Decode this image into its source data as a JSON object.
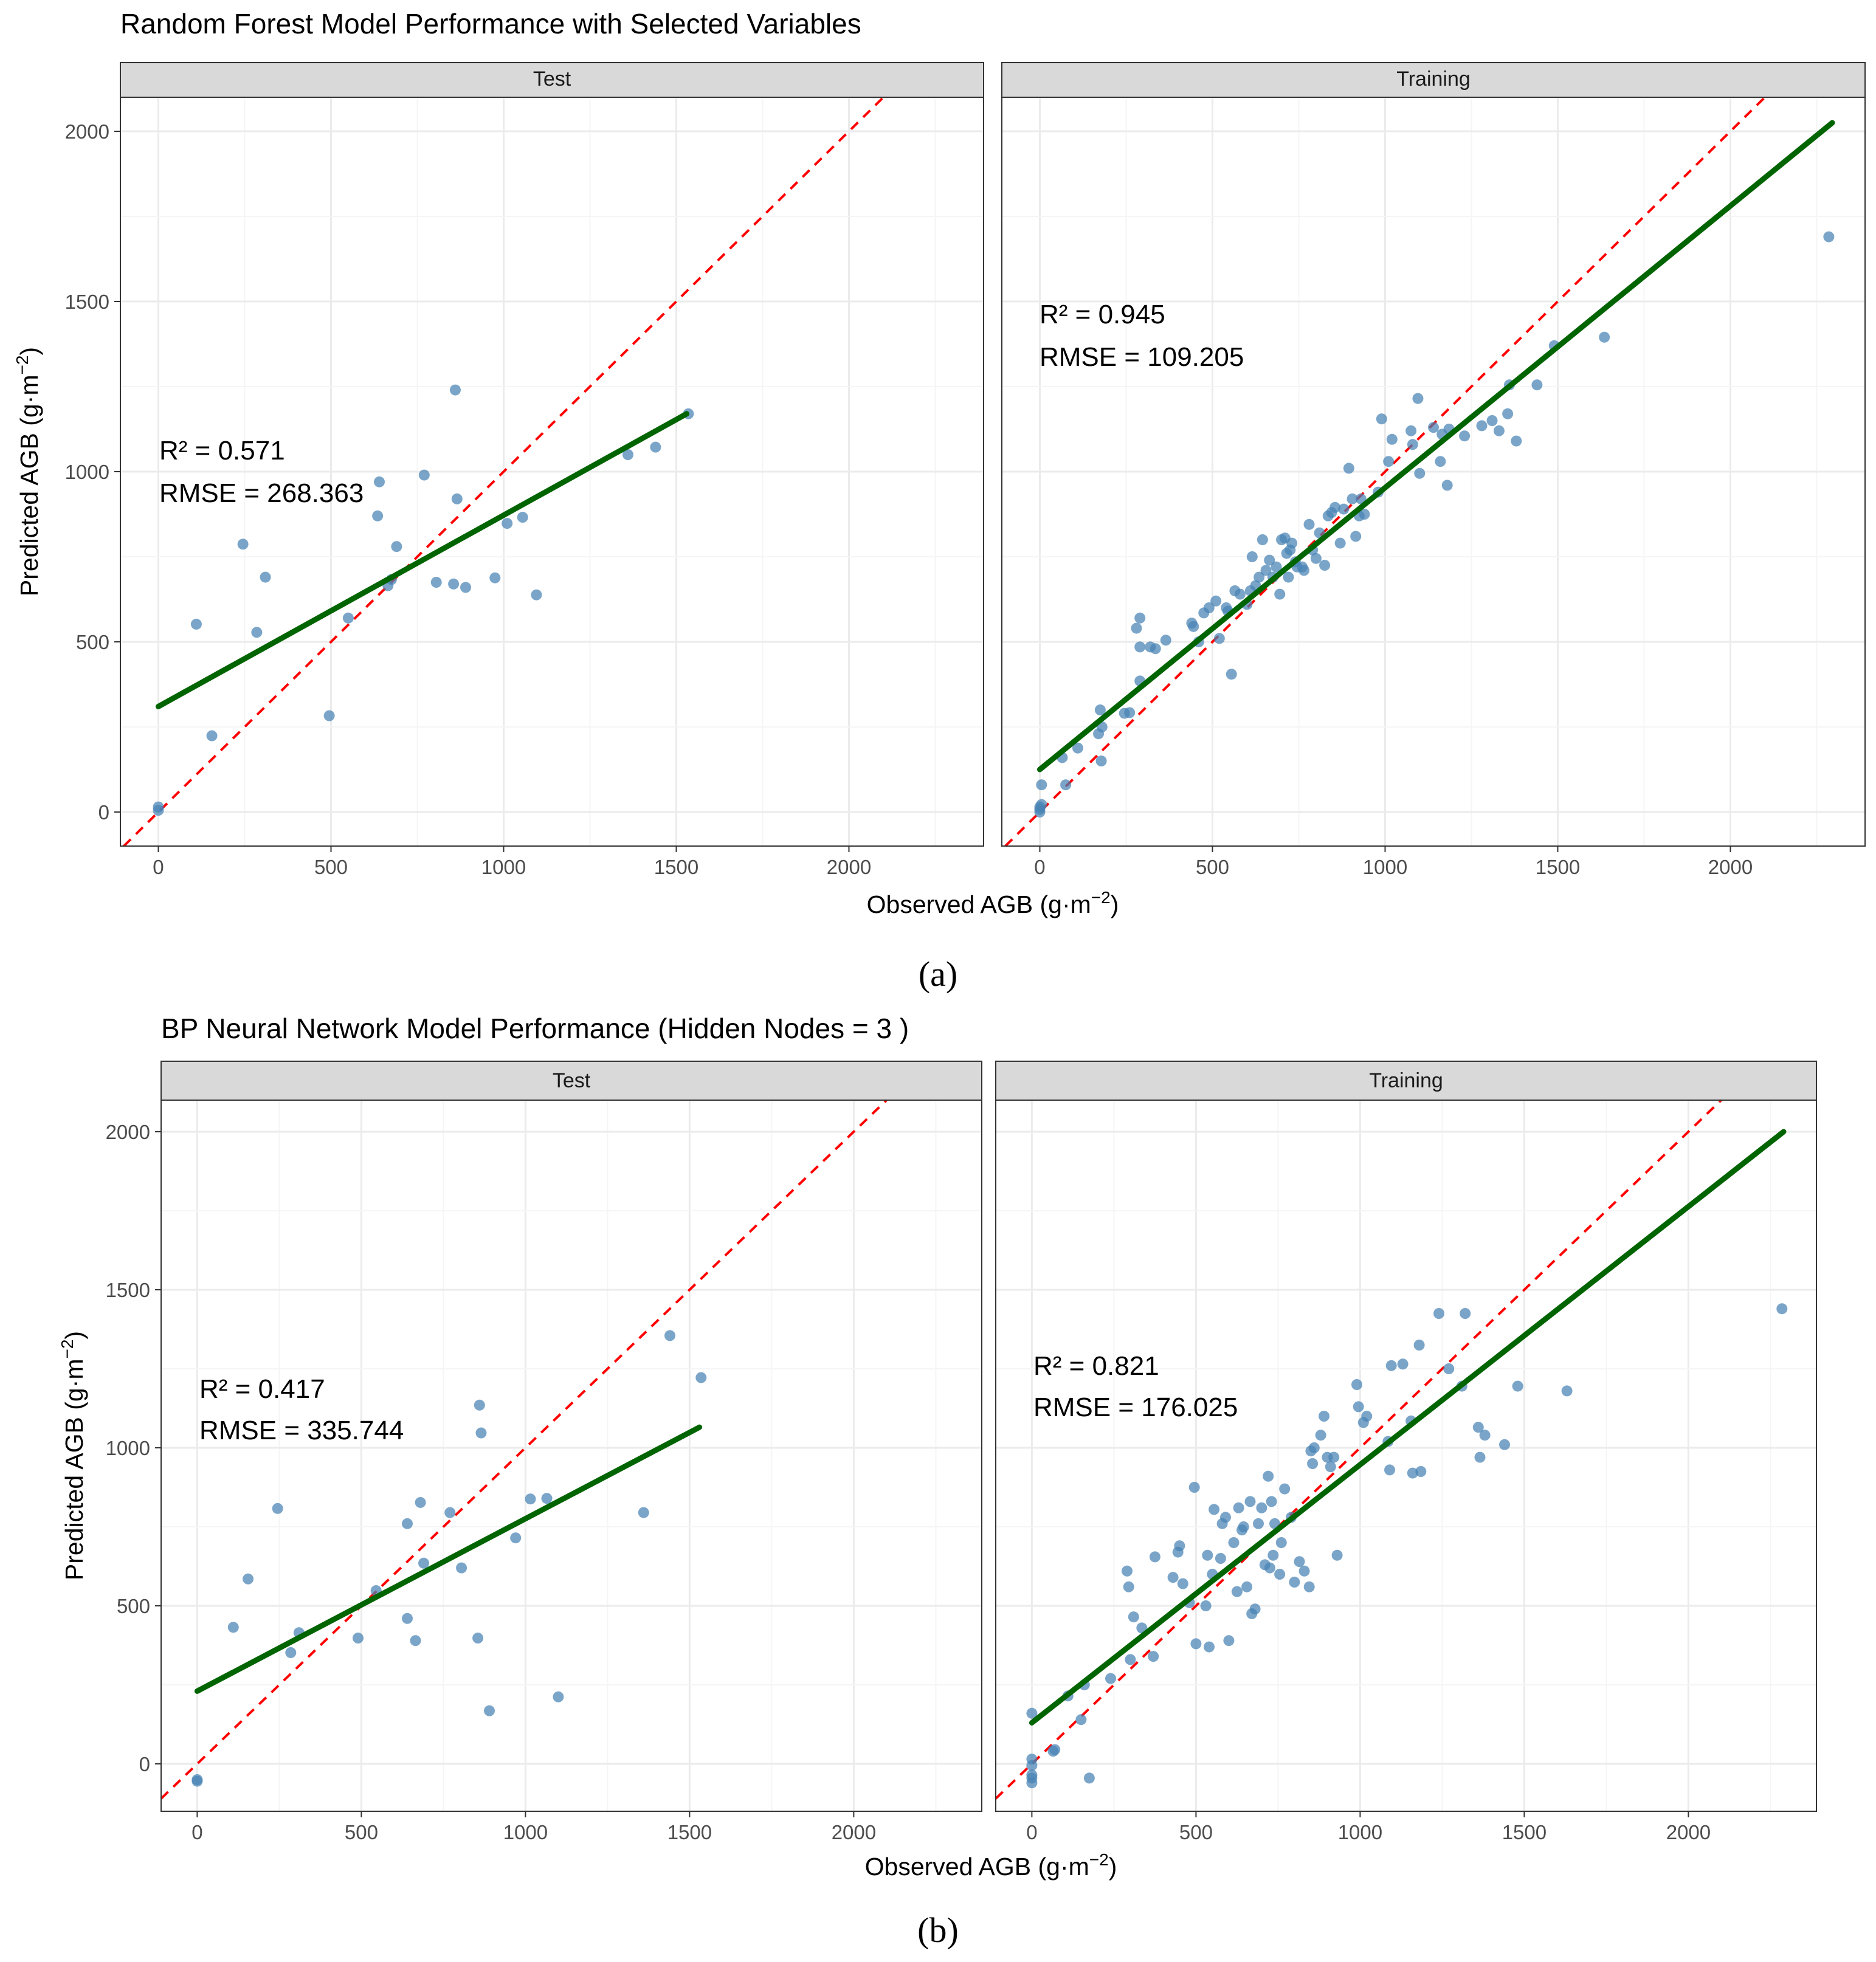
{
  "chart_data": [
    {
      "type": "scatter",
      "figure_title": "Random Forest Model Performance with Selected Variables",
      "sublabel": "(a)",
      "xlabel": "Observed AGB (g·m",
      "xlabel_sup": "−2",
      "xlabel_close": ")",
      "ylabel": "Predicted AGB (g·m",
      "ylabel_sup": "−2",
      "ylabel_close": ")",
      "xlim": [
        -110,
        2390
      ],
      "ylim": [
        -100,
        2100
      ],
      "xticks": [
        0,
        500,
        1000,
        1500,
        2000
      ],
      "yticks": [
        0,
        500,
        1000,
        1500,
        2000
      ],
      "panels": [
        {
          "strip": "Test",
          "r2_label": "R² = 0.571",
          "rmse_label": "RMSE = 268.363",
          "fit_line": {
            "x1": 0,
            "y1": 310,
            "x2": 1530,
            "y2": 1170
          },
          "points": [
            [
              0,
              5
            ],
            [
              0,
              15
            ],
            [
              110,
              552
            ],
            [
              155,
              224
            ],
            [
              245,
              787
            ],
            [
              285,
              528
            ],
            [
              310,
              690
            ],
            [
              495,
              283
            ],
            [
              550,
              570
            ],
            [
              635,
              870
            ],
            [
              640,
              970
            ],
            [
              665,
              665
            ],
            [
              675,
              683
            ],
            [
              690,
              780
            ],
            [
              770,
              990
            ],
            [
              805,
              675
            ],
            [
              855,
              670
            ],
            [
              860,
              1240
            ],
            [
              865,
              920
            ],
            [
              890,
              660
            ],
            [
              975,
              688
            ],
            [
              1010,
              848
            ],
            [
              1055,
              866
            ],
            [
              1095,
              638
            ],
            [
              1360,
              1050
            ],
            [
              1440,
              1072
            ],
            [
              1535,
              1170
            ]
          ]
        },
        {
          "strip": "Training",
          "r2_label": "R² = 0.945",
          "rmse_label": "RMSE = 109.205",
          "fit_line": {
            "x1": 0,
            "y1": 125,
            "x2": 2295,
            "y2": 2025
          },
          "points": [
            [
              0,
              0
            ],
            [
              0,
              8
            ],
            [
              0,
              15
            ],
            [
              5,
              22
            ],
            [
              5,
              80
            ],
            [
              65,
              160
            ],
            [
              75,
              80
            ],
            [
              110,
              188
            ],
            [
              170,
              230
            ],
            [
              175,
              300
            ],
            [
              178,
              150
            ],
            [
              180,
              250
            ],
            [
              245,
              290
            ],
            [
              260,
              292
            ],
            [
              280,
              540
            ],
            [
              290,
              570
            ],
            [
              290,
              485
            ],
            [
              290,
              385
            ],
            [
              320,
              485
            ],
            [
              335,
              480
            ],
            [
              365,
              505
            ],
            [
              440,
              555
            ],
            [
              445,
              545
            ],
            [
              460,
              500
            ],
            [
              475,
              585
            ],
            [
              490,
              600
            ],
            [
              510,
              620
            ],
            [
              520,
              510
            ],
            [
              540,
              600
            ],
            [
              545,
              590
            ],
            [
              555,
              405
            ],
            [
              565,
              650
            ],
            [
              580,
              640
            ],
            [
              600,
              610
            ],
            [
              610,
              650
            ],
            [
              615,
              750
            ],
            [
              625,
              665
            ],
            [
              635,
              690
            ],
            [
              645,
              800
            ],
            [
              655,
              710
            ],
            [
              665,
              740
            ],
            [
              675,
              690
            ],
            [
              685,
              720
            ],
            [
              695,
              640
            ],
            [
              700,
              800
            ],
            [
              710,
              805
            ],
            [
              715,
              760
            ],
            [
              720,
              690
            ],
            [
              725,
              770
            ],
            [
              730,
              790
            ],
            [
              740,
              735
            ],
            [
              745,
              720
            ],
            [
              760,
              720
            ],
            [
              765,
              710
            ],
            [
              780,
              845
            ],
            [
              790,
              770
            ],
            [
              800,
              745
            ],
            [
              810,
              820
            ],
            [
              825,
              725
            ],
            [
              835,
              870
            ],
            [
              845,
              880
            ],
            [
              855,
              895
            ],
            [
              870,
              790
            ],
            [
              880,
              890
            ],
            [
              895,
              1010
            ],
            [
              905,
              920
            ],
            [
              915,
              810
            ],
            [
              925,
              870
            ],
            [
              930,
              920
            ],
            [
              940,
              875
            ],
            [
              980,
              940
            ],
            [
              990,
              1155
            ],
            [
              1010,
              1030
            ],
            [
              1020,
              1095
            ],
            [
              1075,
              1120
            ],
            [
              1080,
              1080
            ],
            [
              1095,
              1215
            ],
            [
              1100,
              995
            ],
            [
              1140,
              1130
            ],
            [
              1160,
              1030
            ],
            [
              1165,
              1110
            ],
            [
              1180,
              960
            ],
            [
              1185,
              1125
            ],
            [
              1230,
              1105
            ],
            [
              1280,
              1135
            ],
            [
              1310,
              1150
            ],
            [
              1330,
              1120
            ],
            [
              1355,
              1170
            ],
            [
              1360,
              1255
            ],
            [
              1380,
              1090
            ],
            [
              1440,
              1255
            ],
            [
              1490,
              1370
            ],
            [
              1635,
              1395
            ],
            [
              2285,
              1690
            ]
          ]
        }
      ]
    },
    {
      "type": "scatter",
      "figure_title": "BP Neural Network Model Performance (Hidden Nodes = 3 )",
      "sublabel": "(b)",
      "xlabel": "Observed AGB (g·m",
      "xlabel_sup": "−2",
      "xlabel_close": ")",
      "ylabel": "Predicted AGB (g·m",
      "ylabel_sup": "−2",
      "ylabel_close": ")",
      "xlim": [
        -110,
        2390
      ],
      "ylim": [
        -150,
        2100
      ],
      "xticks": [
        0,
        500,
        1000,
        1500,
        2000
      ],
      "yticks": [
        0,
        500,
        1000,
        1500,
        2000
      ],
      "panels": [
        {
          "strip": "Test",
          "r2_label": "R² = 0.417",
          "rmse_label": "RMSE = 335.744",
          "fit_line": {
            "x1": 0,
            "y1": 230,
            "x2": 1530,
            "y2": 1065
          },
          "points": [
            [
              0,
              -55
            ],
            [
              0,
              -50
            ],
            [
              110,
              432
            ],
            [
              155,
              585
            ],
            [
              245,
              808
            ],
            [
              285,
              352
            ],
            [
              310,
              415
            ],
            [
              490,
              398
            ],
            [
              545,
              548
            ],
            [
              640,
              460
            ],
            [
              640,
              760
            ],
            [
              665,
              390
            ],
            [
              680,
              827
            ],
            [
              690,
              635
            ],
            [
              770,
              795
            ],
            [
              805,
              620
            ],
            [
              855,
              398
            ],
            [
              860,
              1135
            ],
            [
              865,
              1047
            ],
            [
              890,
              168
            ],
            [
              970,
              715
            ],
            [
              1015,
              838
            ],
            [
              1065,
              840
            ],
            [
              1100,
              212
            ],
            [
              1360,
              795
            ],
            [
              1440,
              1355
            ],
            [
              1535,
              1222
            ]
          ]
        },
        {
          "strip": "Training",
          "r2_label": "R² = 0.821",
          "rmse_label": "RMSE = 176.025",
          "fit_line": {
            "x1": 0,
            "y1": 130,
            "x2": 2290,
            "y2": 2000
          },
          "points": [
            [
              0,
              -60
            ],
            [
              0,
              -45
            ],
            [
              0,
              -35
            ],
            [
              0,
              -5
            ],
            [
              0,
              15
            ],
            [
              0,
              160
            ],
            [
              65,
              40
            ],
            [
              70,
              45
            ],
            [
              110,
              215
            ],
            [
              150,
              140
            ],
            [
              160,
              250
            ],
            [
              175,
              -45
            ],
            [
              240,
              270
            ],
            [
              290,
              610
            ],
            [
              295,
              560
            ],
            [
              300,
              330
            ],
            [
              310,
              465
            ],
            [
              335,
              430
            ],
            [
              370,
              340
            ],
            [
              375,
              655
            ],
            [
              430,
              590
            ],
            [
              445,
              670
            ],
            [
              450,
              690
            ],
            [
              460,
              570
            ],
            [
              480,
              510
            ],
            [
              495,
              875
            ],
            [
              500,
              380
            ],
            [
              530,
              500
            ],
            [
              535,
              660
            ],
            [
              540,
              370
            ],
            [
              550,
              600
            ],
            [
              555,
              805
            ],
            [
              575,
              650
            ],
            [
              580,
              760
            ],
            [
              590,
              780
            ],
            [
              600,
              390
            ],
            [
              615,
              700
            ],
            [
              625,
              545
            ],
            [
              630,
              810
            ],
            [
              640,
              740
            ],
            [
              645,
              750
            ],
            [
              655,
              560
            ],
            [
              665,
              830
            ],
            [
              670,
              475
            ],
            [
              680,
              490
            ],
            [
              690,
              760
            ],
            [
              700,
              810
            ],
            [
              710,
              630
            ],
            [
              720,
              910
            ],
            [
              725,
              620
            ],
            [
              730,
              830
            ],
            [
              735,
              660
            ],
            [
              740,
              760
            ],
            [
              755,
              600
            ],
            [
              760,
              700
            ],
            [
              770,
              870
            ],
            [
              790,
              780
            ],
            [
              800,
              575
            ],
            [
              815,
              640
            ],
            [
              830,
              610
            ],
            [
              845,
              560
            ],
            [
              850,
              990
            ],
            [
              855,
              950
            ],
            [
              860,
              1000
            ],
            [
              880,
              1040
            ],
            [
              890,
              1100
            ],
            [
              900,
              970
            ],
            [
              910,
              940
            ],
            [
              920,
              970
            ],
            [
              930,
              660
            ],
            [
              990,
              1200
            ],
            [
              995,
              1130
            ],
            [
              1010,
              1080
            ],
            [
              1020,
              1100
            ],
            [
              1085,
              1020
            ],
            [
              1090,
              930
            ],
            [
              1095,
              1260
            ],
            [
              1130,
              1265
            ],
            [
              1155,
              1085
            ],
            [
              1160,
              920
            ],
            [
              1180,
              1325
            ],
            [
              1185,
              925
            ],
            [
              1240,
              1425
            ],
            [
              1270,
              1250
            ],
            [
              1310,
              1195
            ],
            [
              1320,
              1425
            ],
            [
              1360,
              1065
            ],
            [
              1365,
              970
            ],
            [
              1380,
              1040
            ],
            [
              1440,
              1010
            ],
            [
              1480,
              1195
            ],
            [
              1630,
              1180
            ],
            [
              2285,
              1440
            ]
          ]
        }
      ]
    }
  ]
}
